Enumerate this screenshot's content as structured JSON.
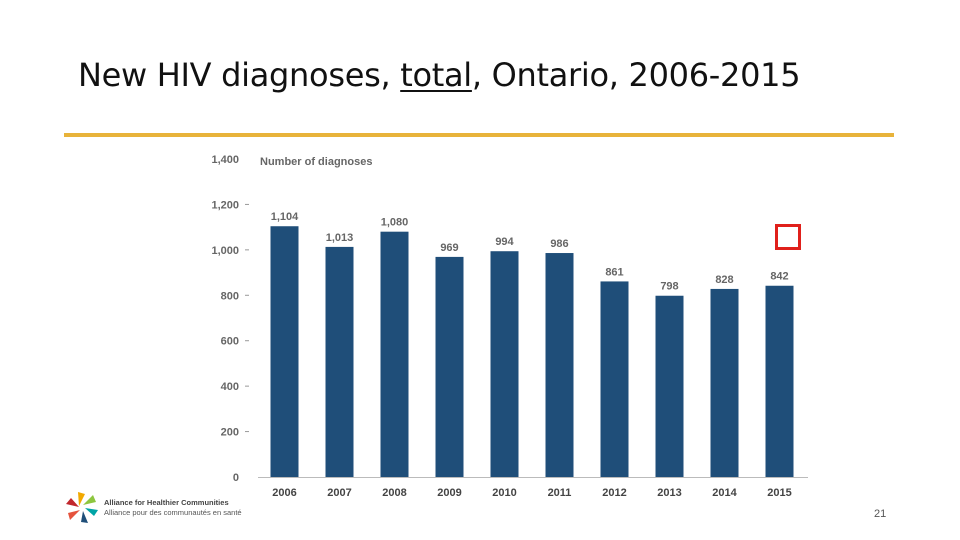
{
  "slide": {
    "title_before": "New HIV diagnoses, ",
    "title_underlined": "total",
    "title_after": ", Ontario, 2006-2015",
    "page_number": "21"
  },
  "colors": {
    "accent_rule": "#E8B33A",
    "bar": "#1F4E79",
    "marker": "#E0201B"
  },
  "logo": {
    "line1": "Alliance for Healthier Communities",
    "line2": "Alliance pour des communautés en santé",
    "icon": "starburst-logo-icon"
  },
  "chart_data": {
    "type": "bar",
    "title": "",
    "ylabel": "Number of diagnoses",
    "xlabel": "",
    "categories": [
      "2006",
      "2007",
      "2008",
      "2009",
      "2010",
      "2011",
      "2012",
      "2013",
      "2014",
      "2015"
    ],
    "values": [
      1104,
      1013,
      1080,
      969,
      994,
      986,
      861,
      798,
      828,
      842
    ],
    "value_labels": [
      "1,104",
      "1,013",
      "1,080",
      "969",
      "994",
      "986",
      "861",
      "798",
      "828",
      "842"
    ],
    "yticks": [
      0,
      200,
      400,
      600,
      800,
      1000,
      1200,
      1400
    ],
    "ytick_labels": [
      "0",
      "200",
      "400",
      "600",
      "800",
      "1,000",
      "1,200",
      "1,400"
    ],
    "ylim": [
      0,
      1400
    ],
    "grid": false,
    "legend": "none"
  }
}
